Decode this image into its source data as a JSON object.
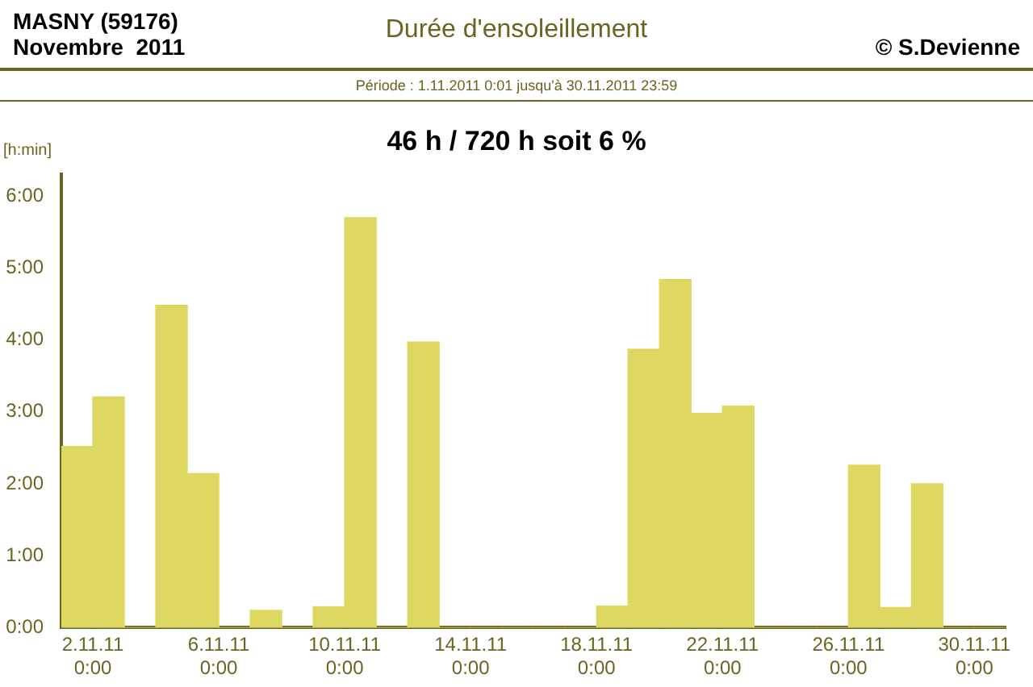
{
  "chart_data": {
    "type": "bar",
    "title": "Durée d'ensoleillement",
    "subtitle": "Période :  1.11.2011   0:01   jusqu'à  30.11.2011   23:59",
    "ylabel": "[h:min]",
    "annotations": [
      "MASNY (59176)",
      "Novembre  2011",
      "© S.Devienne",
      "46 h / 720 h  soit  6 %"
    ],
    "categories": [
      null,
      "2.11.11\n0:00",
      null,
      null,
      null,
      "6.11.11\n0:00",
      null,
      null,
      null,
      "10.11.11\n0:00",
      null,
      null,
      null,
      "14.11.11\n0:00",
      null,
      null,
      null,
      "18.11.11\n0:00",
      null,
      null,
      null,
      "22.11.11\n0:00",
      null,
      null,
      null,
      "26.11.11\n0:00",
      null,
      null,
      null,
      "30.11.11\n0:00"
    ],
    "values": [
      2.52,
      3.21,
      0,
      4.48,
      2.14,
      0,
      0.24,
      0,
      0.29,
      5.7,
      0,
      3.97,
      0,
      0,
      0,
      0,
      0,
      0.3,
      3.87,
      4.84,
      2.98,
      3.08,
      0,
      0,
      0,
      2.26,
      0.28,
      2.0,
      0,
      0
    ],
    "color": "#dcd862",
    "ylim": [
      0,
      6.3
    ],
    "yticks": [
      {
        "value": 0,
        "label": "0:00"
      },
      {
        "value": 1,
        "label": "1:00"
      },
      {
        "value": 2,
        "label": "2:00"
      },
      {
        "value": 3,
        "label": "3:00"
      },
      {
        "value": 4,
        "label": "4:00"
      },
      {
        "value": 5,
        "label": "5:00"
      },
      {
        "value": 6,
        "label": "6:00"
      }
    ],
    "grid": false,
    "legend": false
  }
}
